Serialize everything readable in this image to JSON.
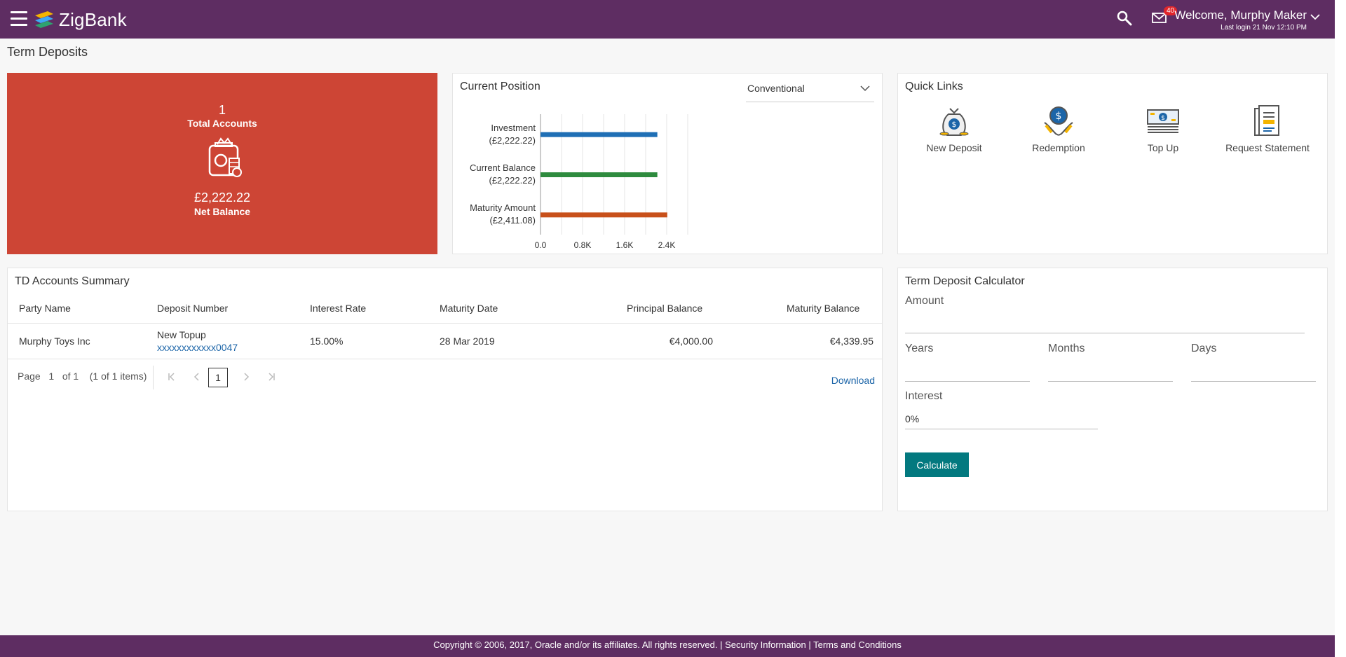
{
  "header": {
    "brand": "ZigBank",
    "notification_count": "40",
    "welcome": "Welcome, Murphy Maker",
    "last_login": "Last login 21 Nov 12:10 PM",
    "colors": {
      "bar": "#5e2d62",
      "badge": "#e0262b"
    }
  },
  "page": {
    "title": "Term Deposits"
  },
  "total": {
    "count": "1",
    "count_label": "Total Accounts",
    "net_balance": "£2,222.22",
    "net_label": "Net Balance",
    "color": "#cd4535"
  },
  "position": {
    "title": "Current Position",
    "selected": "Conventional"
  },
  "chart_data": {
    "type": "bar",
    "orientation": "horizontal",
    "categories": [
      "Investment",
      "Current Balance",
      "Maturity Amount"
    ],
    "category_values": [
      "(£2,222.22)",
      "(£2,222.22)",
      "(£2,411.08)"
    ],
    "values": [
      2222.22,
      2222.22,
      2411.08
    ],
    "colors": [
      "#1f6fb5",
      "#2e8b3e",
      "#c8501a"
    ],
    "xticks": [
      "0.0",
      "0.8K",
      "1.6K",
      "2.4K"
    ],
    "xlim": [
      0,
      2800
    ],
    "grid": true
  },
  "quick_links": {
    "title": "Quick Links",
    "items": [
      {
        "label": "New Deposit",
        "icon": "money-bag-icon"
      },
      {
        "label": "Redemption",
        "icon": "redemption-icon"
      },
      {
        "label": "Top Up",
        "icon": "cash-stack-icon"
      },
      {
        "label": "Request Statement",
        "icon": "statement-icon"
      }
    ]
  },
  "summary": {
    "title": "TD Accounts Summary",
    "columns": [
      "Party Name",
      "Deposit Number",
      "Interest Rate",
      "Maturity Date",
      "Principal Balance",
      "Maturity Balance"
    ],
    "rows": [
      {
        "party": "Murphy Toys Inc",
        "deposit_name": "New Topup",
        "deposit_number": "xxxxxxxxxxxx0047",
        "rate": "15.00%",
        "maturity_date": "28 Mar 2019",
        "principal": "€4,000.00",
        "maturity_balance": "€4,339.95"
      }
    ],
    "pager": {
      "page_label": "Page",
      "page": "1",
      "of": "of 1",
      "items": "(1 of 1 items)",
      "current": "1"
    },
    "download": "Download"
  },
  "calculator": {
    "title": "Term Deposit Calculator",
    "amount_label": "Amount",
    "years_label": "Years",
    "months_label": "Months",
    "days_label": "Days",
    "interest_label": "Interest",
    "interest_value": "0%",
    "button": "Calculate",
    "button_color": "#03797f"
  },
  "footer": {
    "copyright": "Copyright © 2006, 2017, Oracle and/or its affiliates. All rights reserved.",
    "sep": "|",
    "security": "Security Information",
    "terms": "Terms and Conditions"
  }
}
